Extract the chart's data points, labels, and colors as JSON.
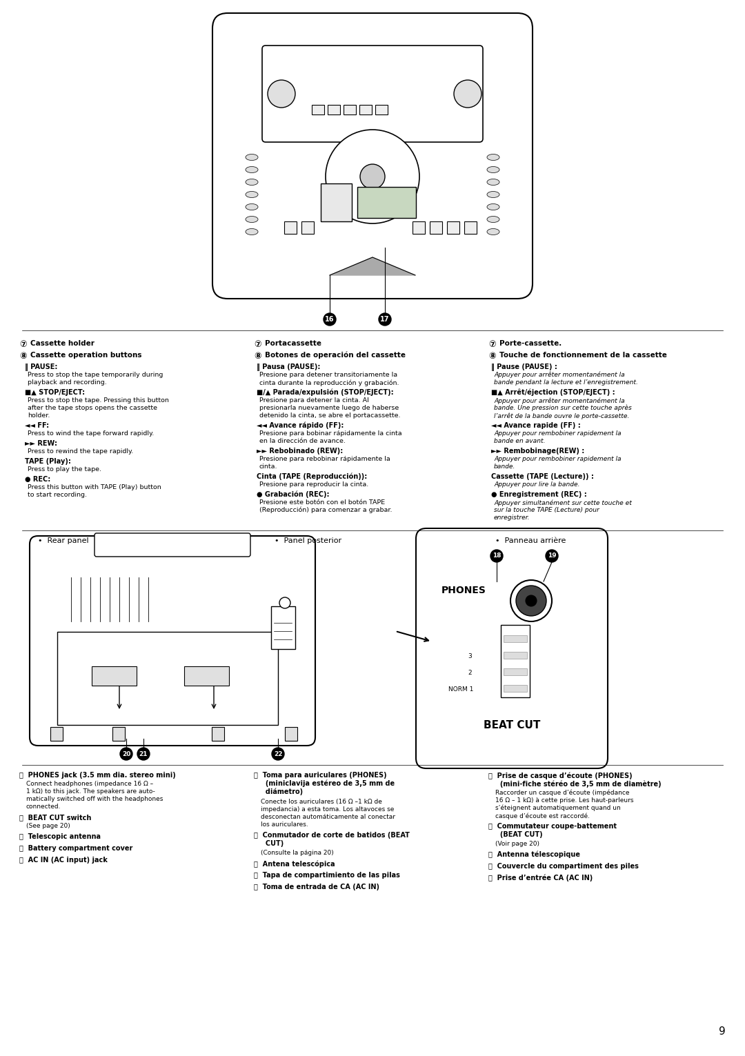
{
  "bg_color": "#ffffff",
  "text_color": "#000000",
  "page_number": "9",
  "col1_header1": "Cassette holder",
  "col1_header2": "Cassette operation buttons",
  "col2_header1": "Portacassette",
  "col2_header2": "Botones de operación del cassette",
  "col3_header1": "Porte-cassette.",
  "col3_header2": "Touche de fonctionnement de la cassette",
  "rear_panel_labels": [
    "Rear panel",
    "Panel posterior",
    "Panneau arrière"
  ],
  "phones_label": "PHONES",
  "beat_cut_label": "BEAT CUT",
  "norm_label": "NORM 1",
  "num16": "16",
  "num17": "17",
  "num18": "18",
  "num19": "19",
  "num20": "20",
  "num21": "21",
  "num22": "22"
}
